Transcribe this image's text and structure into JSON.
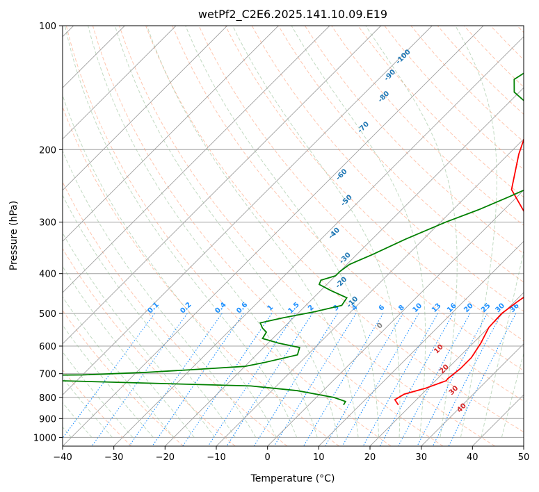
{
  "chart_data": {
    "type": "line",
    "subtype": "skew-T log-P diagram",
    "title": "wetPf2_C2E6.2025.141.10.09.E19",
    "xlabel": "Temperature (°C)",
    "ylabel": "Pressure (hPa)",
    "xlim": [
      -40,
      50
    ],
    "ylim": [
      1050,
      100
    ],
    "y_scale": "log",
    "x_ticks": [
      -40,
      -30,
      -20,
      -10,
      0,
      10,
      20,
      30,
      40,
      50
    ],
    "y_ticks": [
      100,
      200,
      300,
      400,
      500,
      600,
      700,
      800,
      900,
      1000
    ],
    "grid": true,
    "colors": {
      "temperature": "#ff0000",
      "dewpoint": "#008000",
      "isotherm_grid": "#a0a0a0",
      "dry_adiabat": "#ffa07a",
      "moist_adiabat": "#8fbc8f",
      "mixing_ratio": "#1e90ff",
      "dry_adiabat_label": "#d62728",
      "moist_adiabat_label": "#1f77b4",
      "mixing_ratio_label": "#1e90ff"
    },
    "series": [
      {
        "key": "temperature",
        "points": [
          [
            17.5,
            834
          ],
          [
            15.8,
            810
          ],
          [
            16.5,
            785
          ],
          [
            19.5,
            760
          ],
          [
            22.1,
            728
          ],
          [
            22.0,
            720
          ],
          [
            22.5,
            680
          ],
          [
            22.5,
            640
          ],
          [
            21.5,
            590
          ],
          [
            20.0,
            540
          ],
          [
            19.8,
            500
          ],
          [
            20.5,
            470
          ],
          [
            21.5,
            440
          ],
          [
            17.5,
            380
          ],
          [
            7.5,
            300
          ],
          [
            -2.5,
            250
          ],
          [
            -8.0,
            205
          ],
          [
            -11.0,
            180
          ],
          [
            -13.0,
            167
          ],
          [
            -14.0,
            160
          ],
          [
            -11.5,
            148
          ],
          [
            -7.0,
            138
          ],
          [
            -6.0,
            128
          ],
          [
            -7.5,
            118
          ],
          [
            -9.0,
            110
          ],
          [
            -10.5,
            100
          ]
        ]
      },
      {
        "key": "dewpoint",
        "points": [
          [
            6.8,
            834
          ],
          [
            6.5,
            818
          ],
          [
            3.5,
            800
          ],
          [
            -5.0,
            770
          ],
          [
            -15.0,
            750
          ],
          [
            -50.0,
            730
          ],
          [
            -70.0,
            720
          ],
          [
            -70.0,
            708
          ],
          [
            -50.0,
            705
          ],
          [
            -38.0,
            695
          ],
          [
            -30.0,
            685
          ],
          [
            -20.0,
            672
          ],
          [
            -17.0,
            658
          ],
          [
            -12.0,
            630
          ],
          [
            -13.0,
            605
          ],
          [
            -18.0,
            590
          ],
          [
            -22.0,
            575
          ],
          [
            -22.5,
            555
          ],
          [
            -24.0,
            543
          ],
          [
            -25.5,
            527
          ],
          [
            -22.0,
            512
          ],
          [
            -17.0,
            495
          ],
          [
            -13.0,
            478
          ],
          [
            -13.5,
            458
          ],
          [
            -18.0,
            440
          ],
          [
            -21.5,
            425
          ],
          [
            -22.0,
            415
          ],
          [
            -20.0,
            405
          ],
          [
            -20.0,
            395
          ],
          [
            -19.5,
            380
          ],
          [
            -17.0,
            360
          ],
          [
            -13.5,
            330
          ],
          [
            -9.0,
            300
          ],
          [
            -5.0,
            280
          ],
          [
            -1.5,
            260
          ],
          [
            0.5,
            248
          ],
          [
            1.0,
            240
          ],
          [
            -0.5,
            232
          ],
          [
            -1.0,
            220
          ],
          [
            -3.0,
            200
          ],
          [
            -7.0,
            180
          ],
          [
            -9.5,
            170
          ],
          [
            -11.0,
            163
          ],
          [
            -16.0,
            155
          ],
          [
            -21.0,
            145
          ],
          [
            -23.5,
            135
          ],
          [
            -22.0,
            125
          ],
          [
            -20.0,
            115
          ],
          [
            -19.0,
            100
          ]
        ]
      }
    ],
    "mixing_ratio_labels": [
      "0.1",
      "0.2",
      "0.4",
      "0.6",
      "1",
      "1.5",
      "2",
      "3",
      "4",
      "6",
      "8",
      "10",
      "13",
      "16",
      "20",
      "25",
      "30",
      "36"
    ],
    "mixing_ratio_values": [
      0.1,
      0.2,
      0.4,
      0.6,
      1,
      1.5,
      2,
      3,
      4,
      6,
      8,
      10,
      13,
      16,
      20,
      25,
      30,
      36
    ],
    "moist_adiabat_labels": [
      "-100",
      "-90",
      "-80",
      "-70",
      "-60",
      "-50",
      "-40",
      "-30",
      "-20",
      "-10",
      "0"
    ],
    "moist_adiabat_label_points": [
      [
        -49,
        120
      ],
      [
        -48,
        133
      ],
      [
        -45,
        150
      ],
      [
        -43,
        178
      ],
      [
        -38,
        232
      ],
      [
        -32,
        268
      ],
      [
        -28,
        322
      ],
      [
        -21,
        370
      ],
      [
        -17,
        424
      ],
      [
        -11,
        473
      ],
      [
        -1,
        540
      ]
    ],
    "dry_adiabat_labels": [
      "10",
      "20",
      "30",
      "40"
    ],
    "dry_adiabat_label_points": [
      [
        15,
        615
      ],
      [
        20,
        688
      ],
      [
        26,
        775
      ],
      [
        31,
        855
      ]
    ]
  }
}
